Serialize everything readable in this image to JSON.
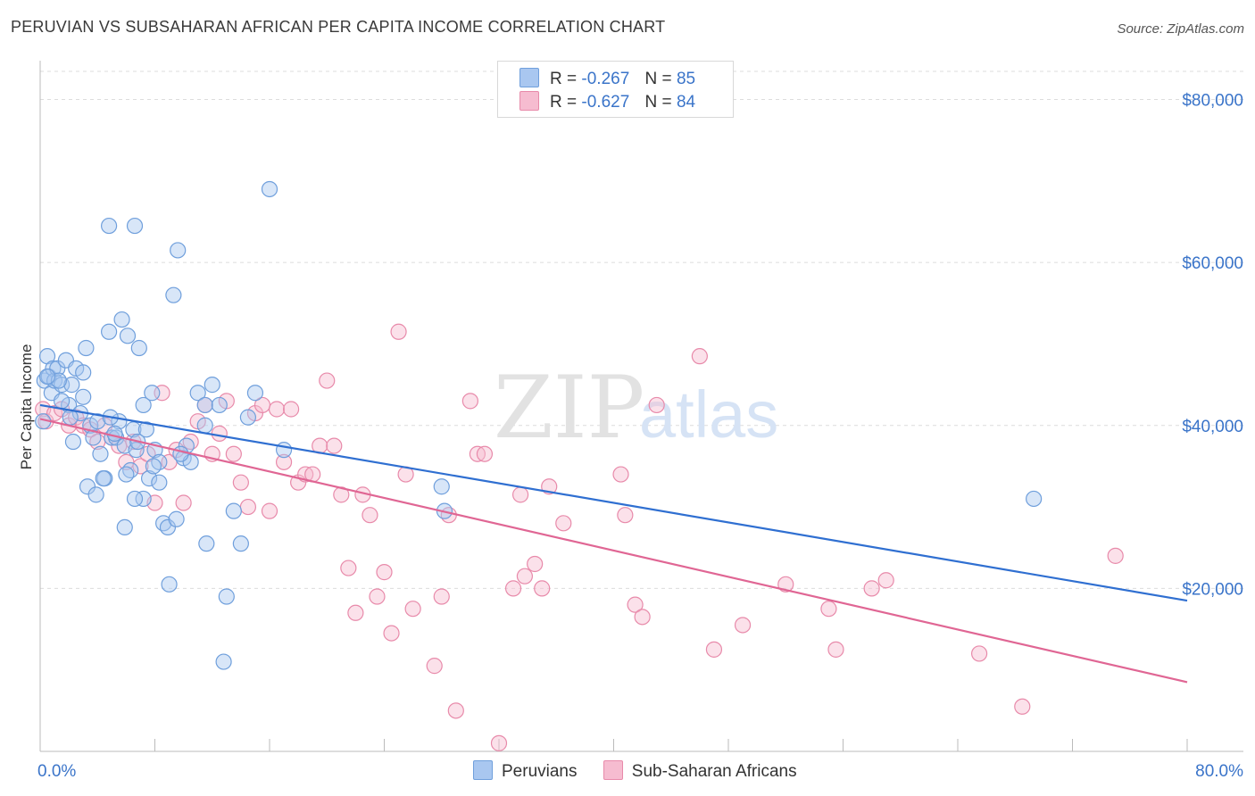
{
  "title": "PERUVIAN VS SUBSAHARAN AFRICAN PER CAPITA INCOME CORRELATION CHART",
  "source": "Source: ZipAtlas.com",
  "watermark": {
    "zip": "ZIP",
    "atlas": "atlas"
  },
  "legend": {
    "r_label": "R =",
    "n_label": "N =",
    "rows": [
      {
        "name": "Peruvians",
        "r": "-0.267",
        "n": "85"
      },
      {
        "name": "Sub-Saharan Africans",
        "r": "-0.627",
        "n": "84"
      }
    ]
  },
  "colors": {
    "blue_fill": "#a9c7f0",
    "blue_stroke": "#6f9fdc",
    "blue_line": "#2f6fd1",
    "pink_fill": "#f6bcd0",
    "pink_stroke": "#e88aaa",
    "pink_line": "#e06694",
    "axis_text": "#3a74c9",
    "grid": "#dcdcdc"
  },
  "chart_data": {
    "type": "scatter",
    "title": "PERUVIAN VS SUBSAHARAN AFRICAN PER CAPITA INCOME CORRELATION CHART",
    "xlabel": "",
    "ylabel": "Per Capita Income",
    "xlim": [
      0,
      80
    ],
    "ylim": [
      0,
      84000
    ],
    "x_tick_labels": [
      "0.0%",
      "80.0%"
    ],
    "y_ticks": [
      20000,
      40000,
      60000,
      80000
    ],
    "y_tick_labels": [
      "$20,000",
      "$40,000",
      "$60,000",
      "$80,000"
    ],
    "grid": true,
    "series": [
      {
        "name": "Peruvians",
        "color": "blue",
        "trend": {
          "x": [
            0,
            80
          ],
          "y": [
            42500,
            18500
          ]
        },
        "points": [
          [
            0.2,
            40500
          ],
          [
            0.3,
            45500
          ],
          [
            0.5,
            48500
          ],
          [
            0.6,
            46000
          ],
          [
            0.8,
            44000
          ],
          [
            0.9,
            47000
          ],
          [
            1.0,
            45500
          ],
          [
            1.2,
            47000
          ],
          [
            1.5,
            45000
          ],
          [
            1.8,
            48000
          ],
          [
            2.0,
            42500
          ],
          [
            2.2,
            45000
          ],
          [
            2.5,
            47000
          ],
          [
            2.8,
            41500
          ],
          [
            3.0,
            43500
          ],
          [
            3.2,
            49500
          ],
          [
            3.5,
            40000
          ],
          [
            3.7,
            38500
          ],
          [
            4.0,
            40500
          ],
          [
            4.2,
            36500
          ],
          [
            4.5,
            33500
          ],
          [
            4.8,
            51500
          ],
          [
            5.0,
            38500
          ],
          [
            5.3,
            38500
          ],
          [
            5.5,
            40500
          ],
          [
            5.7,
            53000
          ],
          [
            5.9,
            37500
          ],
          [
            6.1,
            51000
          ],
          [
            6.3,
            34500
          ],
          [
            6.5,
            39500
          ],
          [
            6.7,
            37000
          ],
          [
            6.9,
            49500
          ],
          [
            7.2,
            42500
          ],
          [
            7.4,
            39500
          ],
          [
            7.6,
            33500
          ],
          [
            7.8,
            44000
          ],
          [
            8.0,
            37000
          ],
          [
            8.3,
            35500
          ],
          [
            8.6,
            28000
          ],
          [
            8.9,
            27500
          ],
          [
            9.3,
            56000
          ],
          [
            9.6,
            61500
          ],
          [
            10.0,
            36000
          ],
          [
            10.5,
            35500
          ],
          [
            11.0,
            44000
          ],
          [
            11.5,
            42500
          ],
          [
            12.0,
            45000
          ],
          [
            12.5,
            42500
          ],
          [
            13.0,
            19000
          ],
          [
            13.5,
            29500
          ],
          [
            14.0,
            25500
          ],
          [
            14.5,
            41000
          ],
          [
            15.0,
            44000
          ],
          [
            16.0,
            69000
          ],
          [
            17.0,
            37000
          ],
          [
            4.8,
            64500
          ],
          [
            6.6,
            64500
          ],
          [
            9.5,
            28500
          ],
          [
            9.0,
            20500
          ],
          [
            11.6,
            25500
          ],
          [
            12.8,
            11000
          ],
          [
            28.2,
            29500
          ],
          [
            28.0,
            32500
          ],
          [
            69.3,
            31000
          ],
          [
            1.3,
            45500
          ],
          [
            3.3,
            32500
          ],
          [
            3.9,
            31500
          ],
          [
            5.9,
            27500
          ],
          [
            7.2,
            31000
          ],
          [
            2.3,
            38000
          ],
          [
            4.9,
            41000
          ],
          [
            6.0,
            34000
          ],
          [
            6.8,
            38000
          ],
          [
            7.9,
            35000
          ],
          [
            10.2,
            37500
          ],
          [
            0.5,
            46000
          ],
          [
            1.5,
            43000
          ],
          [
            2.1,
            41000
          ],
          [
            3.0,
            46500
          ],
          [
            4.4,
            33500
          ],
          [
            5.2,
            39000
          ],
          [
            6.6,
            31000
          ],
          [
            8.3,
            33000
          ],
          [
            9.8,
            36500
          ],
          [
            11.5,
            40000
          ]
        ]
      },
      {
        "name": "Sub-Saharan Africans",
        "color": "pink",
        "trend": {
          "x": [
            0,
            80
          ],
          "y": [
            40800,
            8500
          ]
        },
        "points": [
          [
            0.2,
            42000
          ],
          [
            0.4,
            40500
          ],
          [
            1.0,
            41500
          ],
          [
            1.5,
            42000
          ],
          [
            2.0,
            40000
          ],
          [
            2.5,
            41000
          ],
          [
            3.0,
            40000
          ],
          [
            3.5,
            39500
          ],
          [
            4.0,
            38000
          ],
          [
            4.5,
            40000
          ],
          [
            5.0,
            38500
          ],
          [
            5.5,
            37500
          ],
          [
            6.0,
            35500
          ],
          [
            6.5,
            38000
          ],
          [
            7.0,
            35000
          ],
          [
            7.5,
            36500
          ],
          [
            8.0,
            30500
          ],
          [
            8.5,
            44000
          ],
          [
            9.0,
            35500
          ],
          [
            9.5,
            37000
          ],
          [
            10.0,
            30500
          ],
          [
            10.5,
            38000
          ],
          [
            11.0,
            40500
          ],
          [
            11.5,
            42500
          ],
          [
            12.0,
            36500
          ],
          [
            12.5,
            39000
          ],
          [
            13.0,
            43000
          ],
          [
            13.5,
            36500
          ],
          [
            14.0,
            33000
          ],
          [
            14.5,
            30000
          ],
          [
            15.0,
            41500
          ],
          [
            15.5,
            42500
          ],
          [
            16.0,
            29500
          ],
          [
            16.5,
            42000
          ],
          [
            17.0,
            35500
          ],
          [
            17.5,
            42000
          ],
          [
            18.0,
            33000
          ],
          [
            18.5,
            34000
          ],
          [
            19.0,
            34000
          ],
          [
            19.5,
            37500
          ],
          [
            20.0,
            45500
          ],
          [
            20.5,
            37500
          ],
          [
            21.0,
            31500
          ],
          [
            21.5,
            22500
          ],
          [
            22.0,
            17000
          ],
          [
            22.5,
            31500
          ],
          [
            23.0,
            29000
          ],
          [
            23.5,
            19000
          ],
          [
            24.0,
            22000
          ],
          [
            24.5,
            14500
          ],
          [
            25.0,
            51500
          ],
          [
            25.5,
            34000
          ],
          [
            26.0,
            17500
          ],
          [
            27.5,
            10500
          ],
          [
            28.0,
            19000
          ],
          [
            28.5,
            29000
          ],
          [
            29.0,
            5000
          ],
          [
            30.0,
            43000
          ],
          [
            30.5,
            36500
          ],
          [
            31.0,
            36500
          ],
          [
            32.0,
            1000
          ],
          [
            33.0,
            20000
          ],
          [
            33.5,
            31500
          ],
          [
            33.8,
            21500
          ],
          [
            34.5,
            23000
          ],
          [
            35.0,
            20000
          ],
          [
            35.5,
            32500
          ],
          [
            36.5,
            28000
          ],
          [
            40.5,
            34000
          ],
          [
            40.8,
            29000
          ],
          [
            41.5,
            18000
          ],
          [
            42.0,
            16500
          ],
          [
            43.0,
            42500
          ],
          [
            46.0,
            48500
          ],
          [
            47.0,
            12500
          ],
          [
            49.0,
            15500
          ],
          [
            52.0,
            20500
          ],
          [
            55.0,
            17500
          ],
          [
            55.5,
            12500
          ],
          [
            58.0,
            20000
          ],
          [
            59.0,
            21000
          ],
          [
            65.5,
            12000
          ],
          [
            68.5,
            5500
          ],
          [
            75.0,
            24000
          ]
        ]
      }
    ]
  }
}
